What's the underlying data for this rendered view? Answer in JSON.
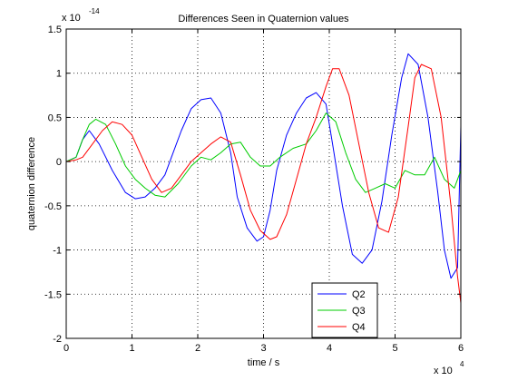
{
  "chart_data": {
    "type": "line",
    "title": "Differences Seen in Quaternion values",
    "xlabel": "time / s",
    "ylabel": "quaternion difference",
    "x_multiplier": {
      "base": "x 10",
      "exp": "4"
    },
    "y_multiplier": {
      "base": "x 10",
      "exp": "-14"
    },
    "xlim": [
      0,
      6
    ],
    "ylim": [
      -2,
      1.5
    ],
    "grid": true,
    "legend_position": "bottom-right",
    "x_ticks": [
      0,
      1,
      2,
      3,
      4,
      5,
      6
    ],
    "y_ticks": [
      -2,
      -1.5,
      -1,
      -0.5,
      0,
      0.5,
      1,
      1.5
    ],
    "x_tick_labels": [
      "0",
      "1",
      "2",
      "3",
      "4",
      "5",
      "6"
    ],
    "y_tick_labels": [
      "-2",
      "-1.5",
      "-1",
      "-0.5",
      "0",
      "0.5",
      "1",
      "1.5"
    ],
    "series": [
      {
        "name": "Q2",
        "color": "#0000ff",
        "x": [
          0,
          0.15,
          0.25,
          0.35,
          0.5,
          0.7,
          0.9,
          1.05,
          1.2,
          1.35,
          1.5,
          1.6,
          1.75,
          1.9,
          2.05,
          2.2,
          2.35,
          2.5,
          2.6,
          2.75,
          2.9,
          3.0,
          3.1,
          3.2,
          3.35,
          3.5,
          3.65,
          3.8,
          3.95,
          4.05,
          4.2,
          4.35,
          4.5,
          4.65,
          4.8,
          4.95,
          5.1,
          5.2,
          5.35,
          5.5,
          5.65,
          5.75,
          5.85,
          5.95,
          6.0
        ],
        "values": [
          0,
          0.05,
          0.25,
          0.35,
          0.2,
          -0.1,
          -0.35,
          -0.42,
          -0.4,
          -0.3,
          -0.15,
          0.05,
          0.35,
          0.6,
          0.7,
          0.72,
          0.55,
          0.1,
          -0.4,
          -0.75,
          -0.9,
          -0.85,
          -0.55,
          -0.1,
          0.3,
          0.55,
          0.72,
          0.78,
          0.65,
          0.2,
          -0.5,
          -1.05,
          -1.15,
          -1.0,
          -0.45,
          0.3,
          0.95,
          1.22,
          1.1,
          0.5,
          -0.35,
          -1.0,
          -1.32,
          -1.2,
          0.4
        ]
      },
      {
        "name": "Q3",
        "color": "#00cc00",
        "x": [
          0,
          0.15,
          0.25,
          0.35,
          0.45,
          0.6,
          0.75,
          0.9,
          1.05,
          1.2,
          1.35,
          1.5,
          1.7,
          1.9,
          2.05,
          2.2,
          2.35,
          2.5,
          2.65,
          2.8,
          2.95,
          3.1,
          3.25,
          3.45,
          3.65,
          3.8,
          3.95,
          4.1,
          4.25,
          4.4,
          4.55,
          4.7,
          4.85,
          5.0,
          5.15,
          5.3,
          5.45,
          5.6,
          5.75,
          5.9,
          6.0
        ],
        "values": [
          0,
          0.05,
          0.25,
          0.42,
          0.48,
          0.42,
          0.2,
          -0.05,
          -0.2,
          -0.3,
          -0.38,
          -0.4,
          -0.25,
          -0.05,
          0.05,
          0.02,
          0.1,
          0.2,
          0.22,
          0.05,
          -0.05,
          -0.05,
          0.05,
          0.15,
          0.2,
          0.35,
          0.55,
          0.45,
          0.1,
          -0.2,
          -0.35,
          -0.3,
          -0.25,
          -0.3,
          -0.1,
          -0.15,
          -0.15,
          0.05,
          -0.2,
          -0.3,
          -0.1
        ]
      },
      {
        "name": "Q4",
        "color": "#ff0000",
        "x": [
          0,
          0.15,
          0.25,
          0.4,
          0.55,
          0.7,
          0.85,
          1.0,
          1.15,
          1.3,
          1.45,
          1.6,
          1.75,
          1.9,
          2.05,
          2.2,
          2.35,
          2.5,
          2.65,
          2.8,
          2.95,
          3.1,
          3.2,
          3.35,
          3.5,
          3.65,
          3.8,
          3.95,
          4.05,
          4.15,
          4.3,
          4.45,
          4.6,
          4.75,
          4.9,
          5.05,
          5.2,
          5.3,
          5.4,
          5.55,
          5.7,
          5.85,
          5.95,
          6.0
        ],
        "values": [
          0,
          0.02,
          0.05,
          0.2,
          0.35,
          0.45,
          0.42,
          0.3,
          0.05,
          -0.2,
          -0.35,
          -0.3,
          -0.15,
          0.0,
          0.1,
          0.2,
          0.28,
          0.22,
          -0.15,
          -0.55,
          -0.78,
          -0.88,
          -0.85,
          -0.6,
          -0.2,
          0.2,
          0.5,
          0.85,
          1.05,
          1.05,
          0.75,
          0.2,
          -0.35,
          -0.75,
          -0.8,
          -0.4,
          0.4,
          0.95,
          1.1,
          1.05,
          0.5,
          -0.5,
          -1.3,
          -1.6
        ]
      }
    ]
  }
}
